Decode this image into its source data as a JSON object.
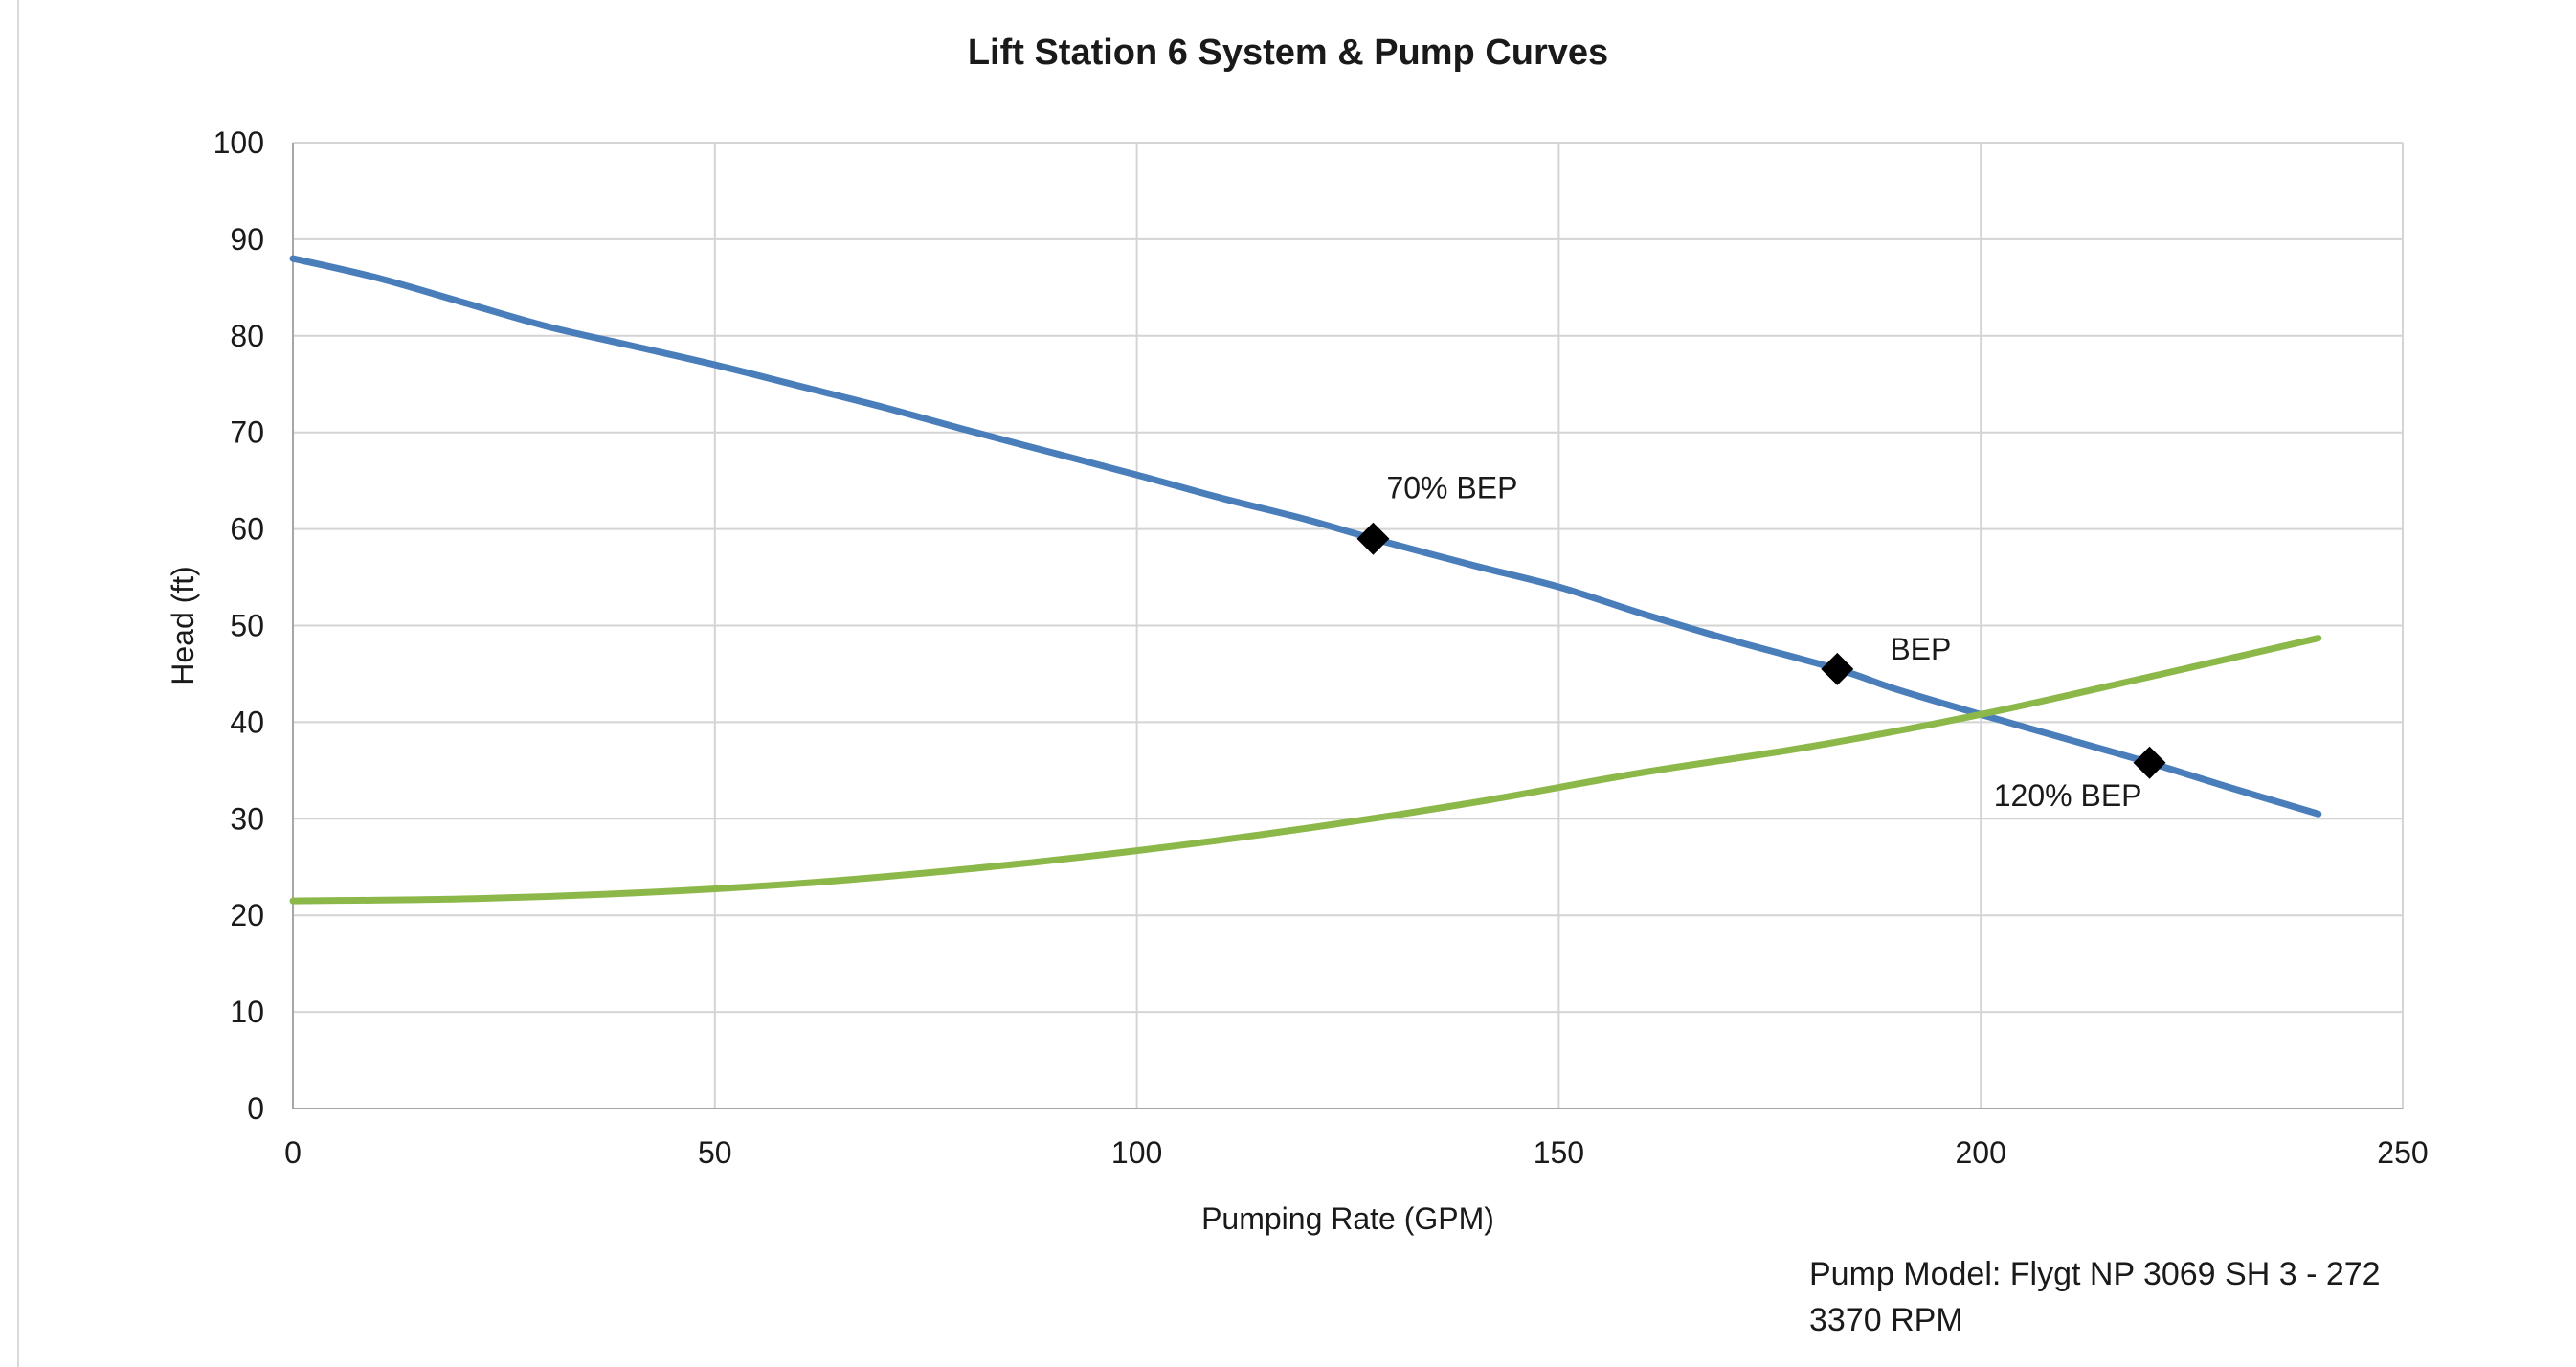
{
  "chart_data": {
    "type": "line",
    "title": "Lift Station 6 System & Pump Curves",
    "xlabel": "Pumping Rate (GPM)",
    "ylabel": "Head (ft)",
    "xlim": [
      0,
      250
    ],
    "ylim": [
      0,
      100
    ],
    "x_ticks": [
      0,
      50,
      100,
      150,
      200,
      250
    ],
    "y_ticks": [
      0,
      10,
      20,
      30,
      40,
      50,
      60,
      70,
      80,
      90,
      100
    ],
    "grid": true,
    "legend": "none",
    "series": [
      {
        "color": "#4a7ebb",
        "x": [
          0,
          10,
          20,
          30,
          40,
          50,
          60,
          70,
          80,
          90,
          100,
          110,
          120,
          128,
          140,
          150,
          160,
          170,
          183,
          190,
          200,
          210,
          220,
          230,
          240
        ],
        "y": [
          88,
          86,
          83.5,
          81,
          79,
          77,
          74.8,
          72.6,
          70.2,
          67.9,
          65.6,
          63.2,
          61,
          59,
          56.2,
          54,
          51.2,
          48.6,
          45.5,
          43.4,
          40.8,
          38.3,
          35.8,
          33.1,
          30.5
        ]
      },
      {
        "color": "#8cb84a",
        "x": [
          0,
          20,
          40,
          60,
          80,
          100,
          120,
          140,
          160,
          180,
          200,
          220,
          240
        ],
        "y": [
          21.5,
          21.7,
          22.3,
          23.3,
          24.8,
          26.7,
          29,
          31.7,
          34.8,
          37.5,
          40.8,
          44.7,
          48.7
        ]
      }
    ],
    "markers": [
      {
        "x": 128,
        "y": 59,
        "label": "70% BEP"
      },
      {
        "x": 183,
        "y": 45.5,
        "label": "BEP"
      },
      {
        "x": 220,
        "y": 35.8,
        "label": "120% BEP"
      }
    ]
  },
  "notes": {
    "pump_model": "Pump Model: Flygt NP 3069 SH 3 - 272",
    "rpm": "3370 RPM"
  }
}
